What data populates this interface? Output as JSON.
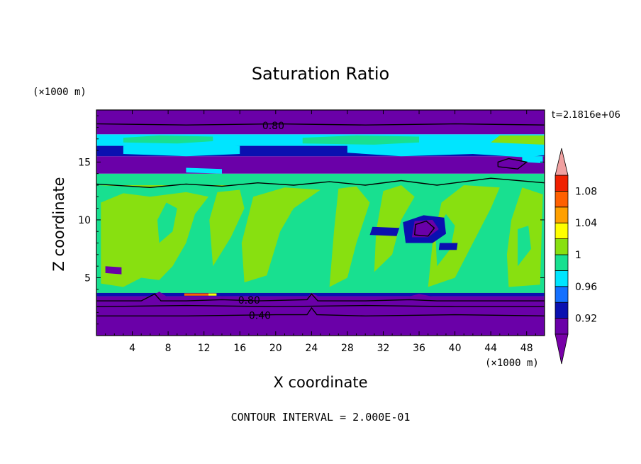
{
  "chart_data": {
    "type": "heatmap",
    "title": "Saturation Ratio",
    "xlabel": "X coordinate",
    "ylabel": "Z coordinate",
    "x_units": "(×1000 m)",
    "y_units": "(×1000 m)",
    "time_label": "t=2.1816e+06",
    "footer": "CONTOUR INTERVAL = 2.000E-01",
    "xlim": [
      0,
      50
    ],
    "ylim": [
      0,
      19.5
    ],
    "x_ticks": [
      4,
      8,
      12,
      16,
      20,
      24,
      28,
      32,
      36,
      40,
      44,
      48
    ],
    "y_ticks": [
      5,
      10,
      15
    ],
    "colorbar": {
      "levels": [
        0.9,
        0.92,
        0.94,
        0.96,
        0.98,
        1.0,
        1.02,
        1.04,
        1.06,
        1.08,
        1.1
      ],
      "tick_labels": [
        "0.92",
        "0.96",
        "1",
        "1.04",
        "1.08"
      ],
      "tick_values": [
        0.92,
        0.96,
        1.0,
        1.04,
        1.08
      ],
      "colors": [
        "#6a00a8",
        "#0a10b0",
        "#1470ff",
        "#00e5ff",
        "#18e090",
        "#88e010",
        "#ffff00",
        "#ffa000",
        "#ff6000",
        "#f02000"
      ],
      "under_color": "#7800a8",
      "over_color": "#f0a0a0"
    },
    "contour_labels": [
      {
        "text": "0.80",
        "x": 18.5,
        "y": 18.1
      },
      {
        "text": "0.80",
        "x": 15.8,
        "y": 3.0
      },
      {
        "text": "0.40",
        "x": 17.0,
        "y": 1.7
      }
    ],
    "bands": [
      {
        "z0": 0.0,
        "z1": 3.4,
        "color": "#6a00a8"
      },
      {
        "z0": 3.4,
        "z1": 3.7,
        "color": "#0a10b0"
      },
      {
        "z0": 3.7,
        "z1": 13.0,
        "color": "#88e010"
      },
      {
        "z0": 13.0,
        "z1": 14.0,
        "color": "#18e090"
      },
      {
        "z0": 14.0,
        "z1": 15.5,
        "color": "#6a00a8"
      },
      {
        "z0": 15.5,
        "z1": 16.4,
        "color": "#0a10b0"
      },
      {
        "z0": 16.4,
        "z1": 17.4,
        "color": "#00e5ff"
      },
      {
        "z0": 17.4,
        "z1": 19.5,
        "color": "#6a00a8"
      }
    ],
    "regions": [
      {
        "color": "#18e090",
        "points": [
          [
            0,
            3.7
          ],
          [
            50,
            3.7
          ],
          [
            50,
            13.2
          ],
          [
            44,
            13.6
          ],
          [
            38,
            13.0
          ],
          [
            34,
            13.4
          ],
          [
            30,
            13.0
          ],
          [
            26,
            13.3
          ],
          [
            22,
            13.0
          ],
          [
            18,
            13.2
          ],
          [
            14,
            12.9
          ],
          [
            10,
            13.1
          ],
          [
            6,
            12.8
          ],
          [
            0,
            13.0
          ]
        ]
      },
      {
        "color": "#88e010",
        "points": [
          [
            0.5,
            4.5
          ],
          [
            3,
            4.2
          ],
          [
            5,
            5.0
          ],
          [
            7,
            4.8
          ],
          [
            8.5,
            6.0
          ],
          [
            10,
            8.0
          ],
          [
            11,
            10.5
          ],
          [
            12.5,
            12.0
          ],
          [
            10,
            12.4
          ],
          [
            6,
            12.0
          ],
          [
            3,
            12.3
          ],
          [
            0.5,
            11.5
          ]
        ]
      },
      {
        "color": "#88e010",
        "points": [
          [
            13,
            6.0
          ],
          [
            15,
            8.5
          ],
          [
            16.5,
            11.0
          ],
          [
            16,
            12.6
          ],
          [
            13.5,
            12.4
          ],
          [
            12.6,
            10.0
          ]
        ]
      },
      {
        "color": "#88e010",
        "points": [
          [
            16.5,
            4.6
          ],
          [
            19,
            5.2
          ],
          [
            20.5,
            9.0
          ],
          [
            22,
            11.0
          ],
          [
            25,
            12.6
          ],
          [
            21,
            12.8
          ],
          [
            17.5,
            12.0
          ],
          [
            16.2,
            8.0
          ]
        ]
      },
      {
        "color": "#88e010",
        "points": [
          [
            26,
            4.2
          ],
          [
            28,
            5.0
          ],
          [
            29,
            8.0
          ],
          [
            30.5,
            11.5
          ],
          [
            29,
            12.9
          ],
          [
            27,
            12.7
          ],
          [
            26.5,
            9.0
          ]
        ]
      },
      {
        "color": "#88e010",
        "points": [
          [
            31,
            5.5
          ],
          [
            33,
            7.0
          ],
          [
            34,
            10.0
          ],
          [
            35.5,
            12.0
          ],
          [
            34,
            13.0
          ],
          [
            32,
            12.5
          ],
          [
            31.2,
            9.0
          ]
        ]
      },
      {
        "color": "#88e010",
        "points": [
          [
            37,
            4.2
          ],
          [
            40,
            5.0
          ],
          [
            42,
            8.0
          ],
          [
            44,
            11.0
          ],
          [
            45,
            12.8
          ],
          [
            41,
            13.0
          ],
          [
            38.5,
            11.5
          ],
          [
            37.5,
            8.0
          ]
        ]
      },
      {
        "color": "#88e010",
        "points": [
          [
            46,
            4.2
          ],
          [
            49.5,
            4.4
          ],
          [
            49.8,
            12.2
          ],
          [
            47.5,
            12.8
          ],
          [
            46.3,
            10.0
          ],
          [
            45.8,
            7.0
          ]
        ]
      },
      {
        "color": "#18e090",
        "points": [
          [
            38,
            6.0
          ],
          [
            39.5,
            7.5
          ],
          [
            40,
            9.5
          ],
          [
            39,
            10.5
          ],
          [
            37.8,
            9.0
          ]
        ]
      },
      {
        "color": "#18e090",
        "points": [
          [
            21,
            6.5
          ],
          [
            22.5,
            8.0
          ],
          [
            23,
            10.0
          ],
          [
            21.8,
            10.8
          ],
          [
            20.8,
            9.0
          ]
        ]
      },
      {
        "color": "#18e090",
        "points": [
          [
            7,
            8.0
          ],
          [
            8.5,
            9.0
          ],
          [
            9,
            11.0
          ],
          [
            7.8,
            11.5
          ],
          [
            6.8,
            10.0
          ]
        ]
      },
      {
        "color": "#18e090",
        "points": [
          [
            47,
            6.0
          ],
          [
            48.5,
            7.5
          ],
          [
            48.2,
            9.5
          ],
          [
            47.0,
            9.2
          ]
        ]
      },
      {
        "color": "#00e5ff",
        "points": [
          [
            28,
            15.8
          ],
          [
            34,
            15.5
          ],
          [
            42,
            15.7
          ],
          [
            48,
            15.4
          ],
          [
            50,
            15.6
          ],
          [
            50,
            16.4
          ],
          [
            44,
            16.6
          ],
          [
            36,
            16.5
          ],
          [
            28,
            16.6
          ]
        ]
      },
      {
        "color": "#00e5ff",
        "points": [
          [
            3,
            15.7
          ],
          [
            10,
            15.5
          ],
          [
            16,
            15.7
          ],
          [
            16,
            16.4
          ],
          [
            9,
            16.5
          ],
          [
            3,
            16.4
          ]
        ]
      },
      {
        "color": "#18e090",
        "points": [
          [
            23,
            16.6
          ],
          [
            31,
            16.5
          ],
          [
            36,
            16.7
          ],
          [
            36,
            17.2
          ],
          [
            29,
            17.3
          ],
          [
            23,
            17.1
          ]
        ]
      },
      {
        "color": "#18e090",
        "points": [
          [
            3,
            16.7
          ],
          [
            9,
            16.6
          ],
          [
            13,
            16.8
          ],
          [
            13,
            17.2
          ],
          [
            7,
            17.3
          ],
          [
            3,
            17.1
          ]
        ]
      },
      {
        "color": "#88e010",
        "points": [
          [
            44,
            16.7
          ],
          [
            50,
            16.5
          ],
          [
            50,
            17.3
          ],
          [
            45,
            17.3
          ]
        ]
      },
      {
        "color": "#0a10b0",
        "points": [
          [
            34.5,
            8.0
          ],
          [
            37.5,
            8.0
          ],
          [
            39.0,
            8.8
          ],
          [
            38.8,
            10.2
          ],
          [
            36.5,
            10.4
          ],
          [
            34.2,
            9.8
          ]
        ]
      },
      {
        "color": "#6a00a8",
        "points": [
          [
            35.2,
            8.5
          ],
          [
            37.0,
            8.5
          ],
          [
            38.2,
            9.2
          ],
          [
            37.5,
            10.0
          ],
          [
            35.5,
            9.9
          ]
        ]
      },
      {
        "color": "#0a10b0",
        "points": [
          [
            30.5,
            8.7
          ],
          [
            33.5,
            8.6
          ],
          [
            33.8,
            9.3
          ],
          [
            30.8,
            9.4
          ]
        ]
      },
      {
        "color": "#0a10b0",
        "points": [
          [
            38.2,
            7.4
          ],
          [
            40.2,
            7.4
          ],
          [
            40.3,
            8.0
          ],
          [
            38.3,
            8.0
          ]
        ]
      },
      {
        "color": "#6a00a8",
        "points": [
          [
            1.0,
            5.4
          ],
          [
            2.8,
            5.3
          ],
          [
            2.8,
            5.9
          ],
          [
            1.0,
            6.0
          ]
        ]
      },
      {
        "color": "#00e5ff",
        "points": [
          [
            47.5,
            15.0
          ],
          [
            49.8,
            14.9
          ],
          [
            49.8,
            15.5
          ],
          [
            47.5,
            15.5
          ]
        ]
      },
      {
        "color": "#00e5ff",
        "points": [
          [
            10.0,
            14.1
          ],
          [
            14.0,
            14.0
          ],
          [
            14.0,
            14.4
          ],
          [
            10.0,
            14.5
          ]
        ]
      },
      {
        "color": "#6a00a8",
        "points": [
          [
            0,
            3.2
          ],
          [
            6,
            3.3
          ],
          [
            7,
            3.8
          ],
          [
            8,
            3.3
          ],
          [
            12,
            3.2
          ],
          [
            14,
            3.4
          ],
          [
            20,
            3.3
          ],
          [
            23.5,
            3.3
          ],
          [
            24,
            3.7
          ],
          [
            25,
            3.3
          ],
          [
            34,
            3.2
          ],
          [
            36,
            3.6
          ],
          [
            38,
            3.3
          ],
          [
            50,
            3.2
          ],
          [
            50,
            3.0
          ],
          [
            0,
            3.0
          ]
        ]
      },
      {
        "color": "#ff6000",
        "points": [
          [
            9.8,
            3.45
          ],
          [
            12.5,
            3.45
          ],
          [
            12.5,
            3.65
          ],
          [
            9.8,
            3.65
          ]
        ]
      },
      {
        "color": "#ffff00",
        "points": [
          [
            12.5,
            3.45
          ],
          [
            13.4,
            3.45
          ],
          [
            13.4,
            3.65
          ],
          [
            12.5,
            3.65
          ]
        ]
      }
    ],
    "contours": [
      {
        "level": 0.8,
        "points": [
          [
            0,
            18.3
          ],
          [
            10,
            18.2
          ],
          [
            20,
            18.3
          ],
          [
            30,
            18.2
          ],
          [
            40,
            18.3
          ],
          [
            50,
            18.2
          ]
        ]
      },
      {
        "level": 0.8,
        "points": [
          [
            0,
            3.0
          ],
          [
            5,
            3.0
          ],
          [
            6.5,
            3.6
          ],
          [
            7.2,
            3.0
          ],
          [
            10,
            3.0
          ],
          [
            14,
            3.1
          ],
          [
            18,
            3.0
          ],
          [
            23.5,
            3.1
          ],
          [
            24,
            3.6
          ],
          [
            24.7,
            3.0
          ],
          [
            30,
            3.0
          ],
          [
            35,
            3.1
          ],
          [
            38,
            3.0
          ],
          [
            44,
            3.0
          ],
          [
            50,
            3.0
          ]
        ]
      },
      {
        "level": 0.4,
        "points": [
          [
            0,
            1.7
          ],
          [
            10,
            1.7
          ],
          [
            20,
            1.8
          ],
          [
            23.5,
            1.8
          ],
          [
            24,
            2.4
          ],
          [
            24.6,
            1.8
          ],
          [
            30,
            1.7
          ],
          [
            40,
            1.8
          ],
          [
            50,
            1.7
          ]
        ]
      },
      {
        "level": 0.2,
        "points": [
          [
            0,
            2.5
          ],
          [
            10,
            2.6
          ],
          [
            20,
            2.5
          ],
          [
            30,
            2.6
          ],
          [
            40,
            2.5
          ],
          [
            50,
            2.5
          ]
        ]
      },
      {
        "level": 1.0,
        "points": [
          [
            0,
            13.1
          ],
          [
            6,
            12.8
          ],
          [
            10,
            13.1
          ],
          [
            14,
            12.9
          ],
          [
            18,
            13.2
          ],
          [
            22,
            13.0
          ],
          [
            26,
            13.3
          ],
          [
            30,
            13.0
          ],
          [
            34,
            13.4
          ],
          [
            38,
            13.0
          ],
          [
            44,
            13.6
          ],
          [
            50,
            13.2
          ]
        ]
      },
      {
        "level": 0.8,
        "points": [
          [
            44.8,
            14.6
          ],
          [
            47.0,
            14.4
          ],
          [
            48.0,
            15.0
          ],
          [
            46.0,
            15.3
          ],
          [
            44.8,
            15.0
          ],
          [
            44.8,
            14.6
          ]
        ]
      },
      {
        "level": 0.8,
        "points": [
          [
            35.5,
            8.7
          ],
          [
            37.0,
            8.6
          ],
          [
            37.7,
            9.3
          ],
          [
            36.8,
            9.9
          ],
          [
            35.6,
            9.6
          ],
          [
            35.5,
            8.7
          ]
        ]
      }
    ]
  }
}
